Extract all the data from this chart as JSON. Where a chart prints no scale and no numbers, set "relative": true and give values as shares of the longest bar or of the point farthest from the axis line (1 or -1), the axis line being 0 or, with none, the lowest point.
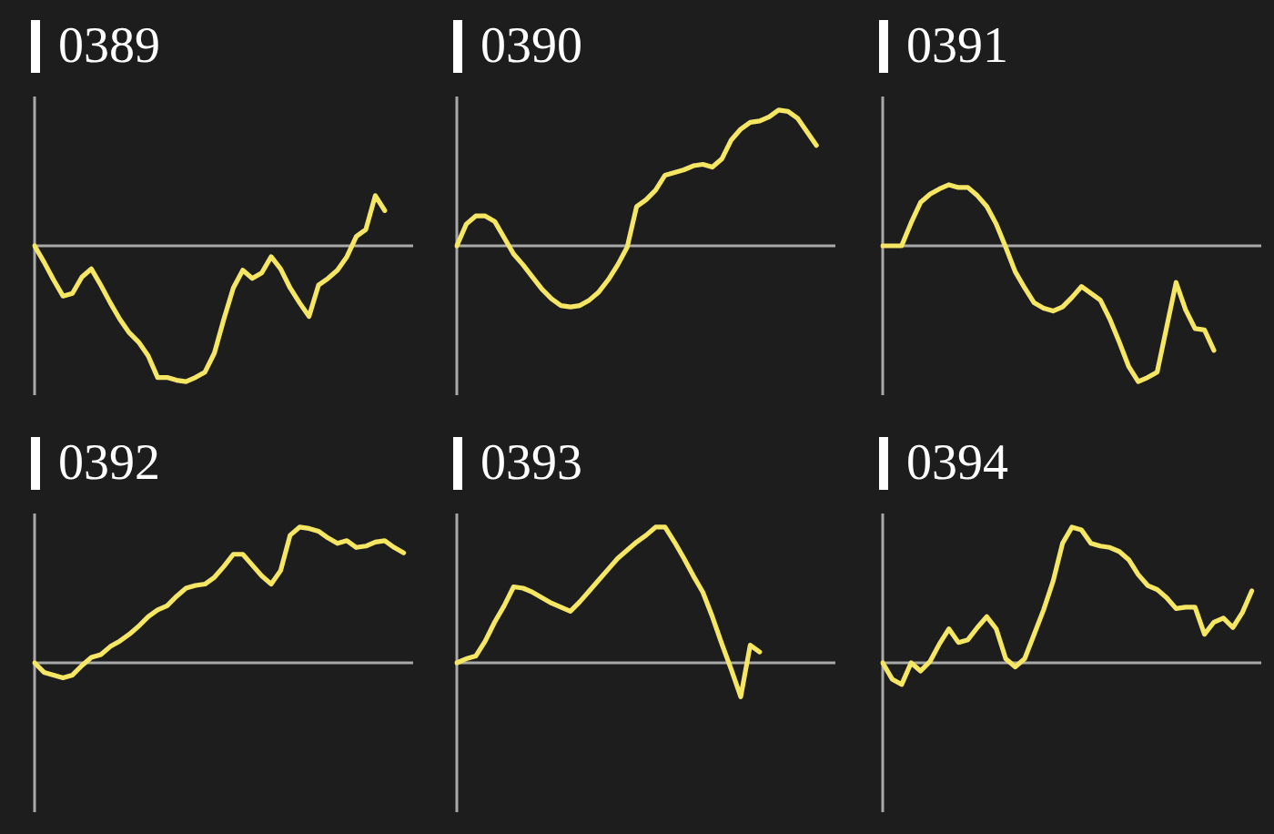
{
  "chart_data": [
    {
      "type": "line",
      "title": "0389",
      "relative": true,
      "categories": [
        null,
        null,
        null,
        null,
        null,
        null,
        null,
        null,
        null,
        null,
        null,
        null,
        null,
        null,
        null,
        null,
        null,
        null,
        null,
        null,
        null,
        null,
        null,
        null,
        null,
        null,
        null,
        null,
        null,
        null,
        null,
        null,
        null,
        null,
        null,
        null,
        null,
        null,
        null,
        null,
        null
      ],
      "series": [
        {
          "color": "#f5e663",
          "values": [
            0,
            -0.12,
            -0.25,
            -0.37,
            -0.35,
            -0.23,
            -0.17,
            -0.29,
            -0.42,
            -0.54,
            -0.64,
            -0.71,
            -0.81,
            -0.97,
            -0.97,
            -0.99,
            -1,
            -0.97,
            -0.93,
            -0.79,
            -0.54,
            -0.31,
            -0.18,
            -0.24,
            -0.2,
            -0.08,
            -0.17,
            -0.31,
            -0.42,
            -0.52,
            -0.29,
            -0.24,
            -0.18,
            -0.08,
            0.07,
            0.12,
            0.37,
            0.26,
            null,
            null,
            null
          ]
        }
      ]
    },
    {
      "type": "line",
      "title": "0390",
      "relative": true,
      "categories": [
        null,
        null,
        null,
        null,
        null,
        null,
        null,
        null,
        null,
        null,
        null,
        null,
        null,
        null,
        null,
        null,
        null,
        null,
        null,
        null,
        null,
        null,
        null,
        null,
        null,
        null,
        null,
        null,
        null,
        null,
        null,
        null,
        null,
        null,
        null,
        null,
        null,
        null,
        null,
        null,
        null
      ],
      "series": [
        {
          "color": "#f5e663",
          "values": [
            0,
            0.16,
            0.22,
            0.22,
            0.18,
            0.06,
            -0.06,
            -0.14,
            -0.23,
            -0.32,
            -0.39,
            -0.44,
            -0.45,
            -0.44,
            -0.4,
            -0.34,
            -0.25,
            -0.14,
            -0.01,
            0.29,
            0.34,
            0.41,
            0.52,
            0.54,
            0.56,
            0.59,
            0.6,
            0.58,
            0.64,
            0.78,
            0.86,
            0.91,
            0.92,
            0.95,
            1,
            0.99,
            0.94,
            0.84,
            0.74,
            null,
            null
          ]
        }
      ]
    },
    {
      "type": "line",
      "title": "0391",
      "relative": true,
      "categories": [
        null,
        null,
        null,
        null,
        null,
        null,
        null,
        null,
        null,
        null,
        null,
        null,
        null,
        null,
        null,
        null,
        null,
        null,
        null,
        null,
        null,
        null,
        null,
        null,
        null,
        null,
        null,
        null,
        null,
        null,
        null,
        null,
        null,
        null,
        null,
        null,
        null,
        null,
        null,
        null,
        null
      ],
      "series": [
        {
          "color": "#f5e663",
          "values": [
            0,
            0,
            0,
            0.17,
            0.32,
            0.38,
            0.42,
            0.45,
            0.43,
            0.43,
            0.37,
            0.29,
            0.16,
            -0.01,
            -0.19,
            -0.31,
            -0.42,
            -0.46,
            -0.48,
            -0.45,
            -0.38,
            -0.3,
            -0.35,
            -0.4,
            -0.54,
            -0.71,
            -0.89,
            -1,
            -0.97,
            -0.93,
            -0.6,
            -0.27,
            -0.47,
            -0.61,
            -0.62,
            -0.77,
            null,
            null,
            null,
            null,
            null
          ]
        }
      ]
    },
    {
      "type": "line",
      "title": "0392",
      "relative": true,
      "categories": [
        null,
        null,
        null,
        null,
        null,
        null,
        null,
        null,
        null,
        null,
        null,
        null,
        null,
        null,
        null,
        null,
        null,
        null,
        null,
        null,
        null,
        null,
        null,
        null,
        null,
        null,
        null,
        null,
        null,
        null,
        null,
        null,
        null,
        null,
        null,
        null,
        null,
        null,
        null,
        null,
        null
      ],
      "series": [
        {
          "color": "#f5e663",
          "values": [
            0,
            -0.07,
            -0.09,
            -0.11,
            -0.09,
            -0.02,
            0.04,
            0.06,
            0.12,
            0.16,
            0.21,
            0.27,
            0.34,
            0.39,
            0.42,
            0.49,
            0.55,
            0.57,
            0.58,
            0.63,
            0.71,
            0.8,
            0.8,
            0.72,
            0.64,
            0.58,
            0.68,
            0.94,
            1,
            0.99,
            0.97,
            0.92,
            0.88,
            0.9,
            0.85,
            0.86,
            0.89,
            0.9,
            0.85,
            0.81,
            null
          ]
        }
      ]
    },
    {
      "type": "line",
      "title": "0393",
      "relative": true,
      "categories": [
        null,
        null,
        null,
        null,
        null,
        null,
        null,
        null,
        null,
        null,
        null,
        null,
        null,
        null,
        null,
        null,
        null,
        null,
        null,
        null,
        null,
        null,
        null,
        null,
        null,
        null,
        null,
        null,
        null,
        null,
        null,
        null,
        null,
        null,
        null,
        null,
        null,
        null,
        null,
        null,
        null
      ],
      "series": [
        {
          "color": "#f5e663",
          "values": [
            0,
            0.03,
            0.05,
            0.16,
            0.3,
            0.42,
            0.56,
            0.55,
            0.52,
            0.48,
            0.44,
            0.41,
            0.38,
            0.45,
            0.53,
            0.61,
            0.69,
            0.77,
            0.83,
            0.89,
            0.94,
            1,
            1,
            0.89,
            0.77,
            0.64,
            0.52,
            0.34,
            0.14,
            -0.05,
            -0.25,
            0.13,
            0.08,
            null,
            null,
            null,
            null,
            null,
            null,
            null,
            null
          ]
        }
      ]
    },
    {
      "type": "line",
      "title": "0394",
      "relative": true,
      "categories": [
        null,
        null,
        null,
        null,
        null,
        null,
        null,
        null,
        null,
        null,
        null,
        null,
        null,
        null,
        null,
        null,
        null,
        null,
        null,
        null,
        null,
        null,
        null,
        null,
        null,
        null,
        null,
        null,
        null,
        null,
        null,
        null,
        null,
        null,
        null,
        null,
        null,
        null,
        null,
        null,
        null
      ],
      "series": [
        {
          "color": "#f5e663",
          "values": [
            0,
            -0.12,
            -0.16,
            0,
            -0.06,
            0.01,
            0.14,
            0.25,
            0.15,
            0.17,
            0.26,
            0.34,
            0.25,
            0.03,
            -0.03,
            0.03,
            0.21,
            0.39,
            0.6,
            0.88,
            1,
            0.98,
            0.88,
            0.86,
            0.85,
            0.82,
            0.76,
            0.65,
            0.57,
            0.54,
            0.48,
            0.4,
            0.41,
            0.41,
            0.21,
            0.3,
            0.33,
            0.26,
            0.37,
            0.53,
            null
          ]
        }
      ]
    }
  ]
}
